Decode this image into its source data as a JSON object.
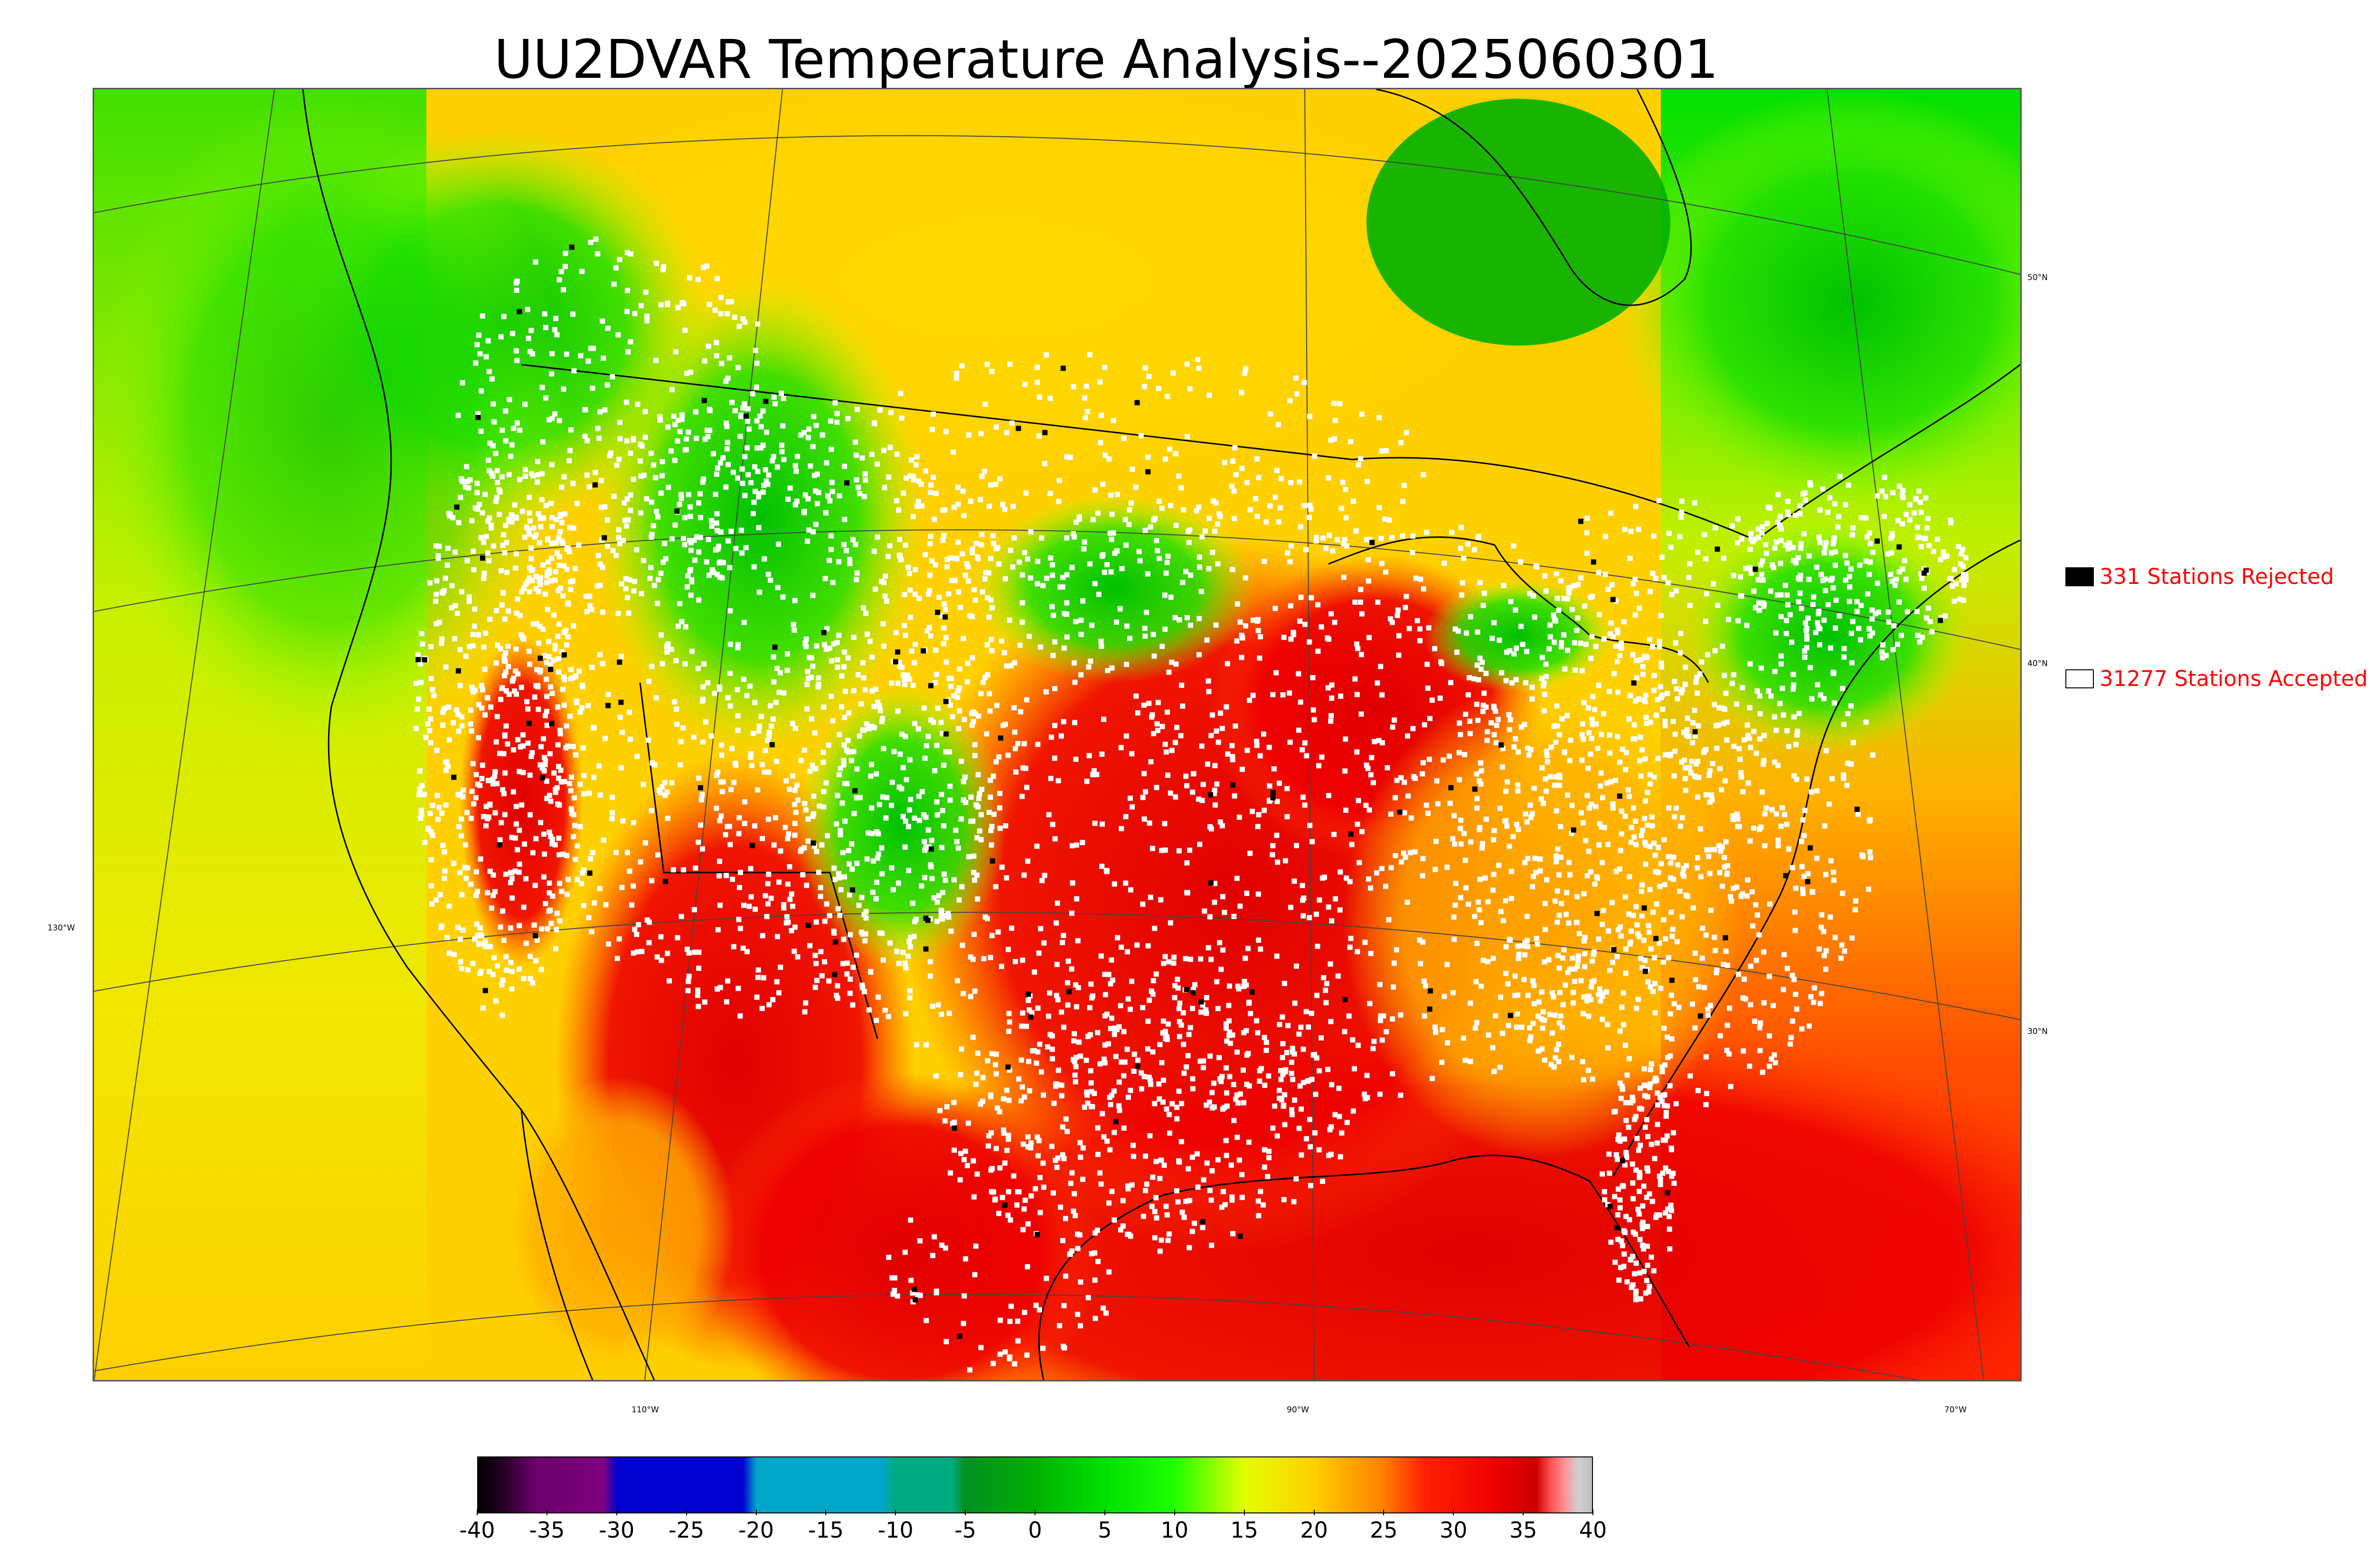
{
  "title": "UU2DVAR Temperature Analysis--2025060301",
  "map": {
    "lat_labels": [
      "50°N",
      "40°N",
      "30°N"
    ],
    "lon_labels": [
      "130°W",
      "110°W",
      "90°W",
      "70°W"
    ]
  },
  "legend": {
    "items": [
      {
        "text": "331 Stations Rejected",
        "swatch_color": "#000000"
      },
      {
        "text": "31277 Stations Accepted",
        "swatch_color": "#ffffff"
      }
    ],
    "text_color": "#ff0000"
  },
  "colorbar": {
    "min": -40,
    "max": 40,
    "ticks": [
      "-40",
      "-35",
      "-30",
      "-25",
      "-20",
      "-15",
      "-10",
      "-5",
      "0",
      "5",
      "10",
      "15",
      "20",
      "25",
      "30",
      "35",
      "40"
    ],
    "stops": [
      {
        "value": -40,
        "color": "#000000"
      },
      {
        "value": -38,
        "color": "#2a002a"
      },
      {
        "value": -36,
        "color": "#6a006a"
      },
      {
        "value": -31,
        "color": "#800080"
      },
      {
        "value": -30,
        "color": "#0000d0"
      },
      {
        "value": -21,
        "color": "#0000d0"
      },
      {
        "value": -20,
        "color": "#00a5c8"
      },
      {
        "value": -11,
        "color": "#00a5c8"
      },
      {
        "value": -10,
        "color": "#00aa80"
      },
      {
        "value": -6,
        "color": "#00aa80"
      },
      {
        "value": -5,
        "color": "#009020"
      },
      {
        "value": 0,
        "color": "#00b000"
      },
      {
        "value": 5,
        "color": "#00e000"
      },
      {
        "value": 10,
        "color": "#20ff00"
      },
      {
        "value": 15,
        "color": "#e0ff00"
      },
      {
        "value": 20,
        "color": "#ffd000"
      },
      {
        "value": 25,
        "color": "#ff8000"
      },
      {
        "value": 28,
        "color": "#ff2000"
      },
      {
        "value": 33,
        "color": "#ee0000"
      },
      {
        "value": 36,
        "color": "#cc0000"
      },
      {
        "value": 37,
        "color": "#ff5050"
      },
      {
        "value": 38,
        "color": "#ff9090"
      },
      {
        "value": 39,
        "color": "#d0d0d0"
      },
      {
        "value": 40,
        "color": "#c0c0c0"
      }
    ]
  },
  "colors": {
    "background": "#ffffff",
    "frame": "#555555"
  }
}
